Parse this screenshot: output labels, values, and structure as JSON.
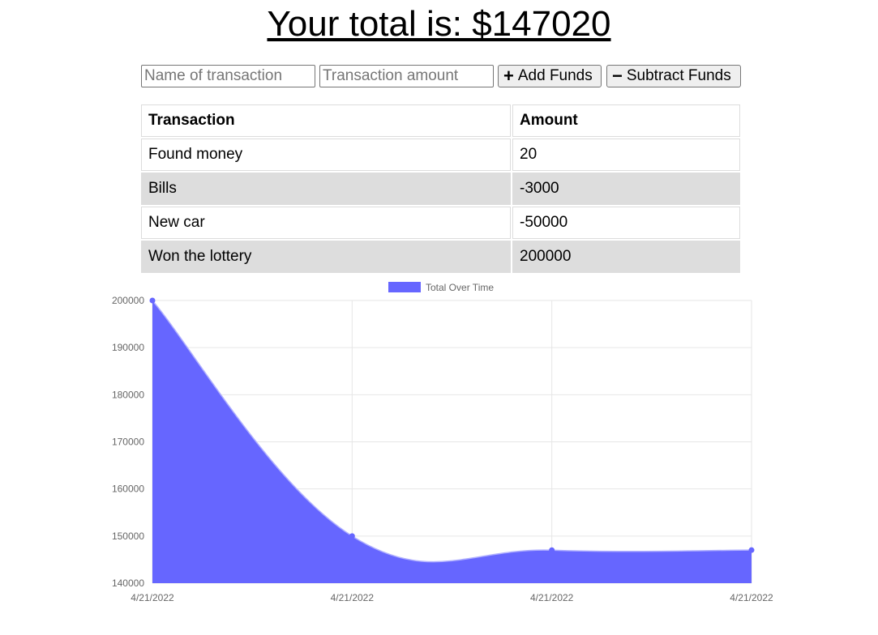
{
  "header": {
    "total_text": "Your total is: $147020"
  },
  "form": {
    "name_placeholder": "Name of transaction",
    "amount_placeholder": "Transaction amount",
    "add_label": "Add Funds",
    "subtract_label": "Subtract Funds"
  },
  "table": {
    "headers": [
      "Transaction",
      "Amount"
    ],
    "rows": [
      [
        "Found money",
        "20"
      ],
      [
        "Bills",
        "-3000"
      ],
      [
        "New car",
        "-50000"
      ],
      [
        "Won the lottery",
        "200000"
      ]
    ]
  },
  "chart_data": {
    "type": "area",
    "x": [
      "4/21/2022",
      "4/21/2022",
      "4/21/2022",
      "4/21/2022"
    ],
    "series": [
      {
        "name": "Total Over Time",
        "values": [
          200000,
          150000,
          147000,
          147020
        ],
        "color": "#6666ff"
      }
    ],
    "yticks": [
      200000,
      190000,
      180000,
      170000,
      160000,
      150000,
      140000
    ],
    "ylim": [
      140000,
      200000
    ],
    "grid": true,
    "legend": "top-center",
    "title": "",
    "xlabel": "",
    "ylabel": ""
  }
}
